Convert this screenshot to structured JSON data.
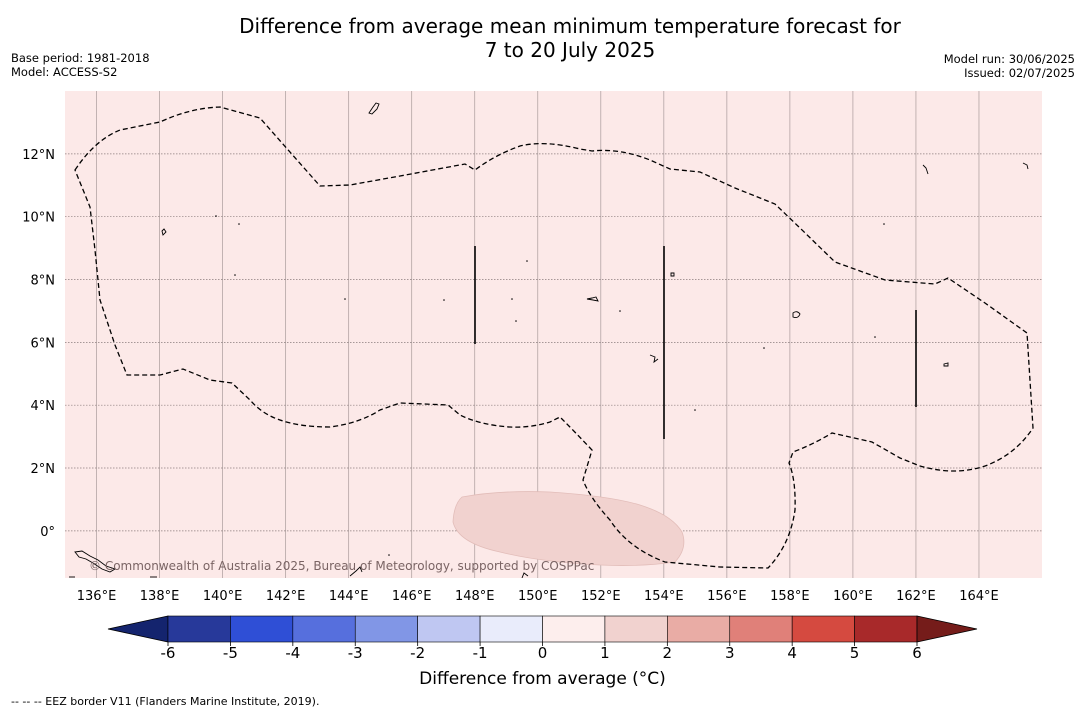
{
  "title": {
    "line1": "Difference from average mean minimum temperature forecast for",
    "line2": "7 to 20 July 2025"
  },
  "meta_left": {
    "base_period": "Base period: 1981-2018",
    "model": "Model: ACCESS-S2"
  },
  "meta_right": {
    "model_run": "Model run: 30/06/2025",
    "issued": "Issued: 02/07/2025"
  },
  "map": {
    "lat_labels": [
      "12°N",
      "10°N",
      "8°N",
      "6°N",
      "4°N",
      "2°N",
      "0°"
    ],
    "lat_values": [
      12,
      10,
      8,
      6,
      4,
      2,
      0
    ],
    "lon_labels": [
      "136°E",
      "138°E",
      "140°E",
      "142°E",
      "144°E",
      "146°E",
      "148°E",
      "150°E",
      "152°E",
      "154°E",
      "156°E",
      "158°E",
      "160°E",
      "162°E",
      "164°E"
    ],
    "lon_values": [
      136,
      138,
      140,
      142,
      144,
      146,
      148,
      150,
      152,
      154,
      156,
      158,
      160,
      162,
      164
    ],
    "lon_range": [
      135,
      166
    ],
    "lat_range": [
      -1.5,
      14
    ],
    "background_color": "#fce9e8",
    "anomaly_patch_color": "#f1d2cf",
    "anomaly_patch_category": "1 to 2",
    "copyright": "© Commonwealth of Australia 2025, Bureau of Meteorology, supported by COSPPac"
  },
  "colorbar": {
    "title": "Difference from average (°C)",
    "tick_labels": [
      "-6",
      "-5",
      "-4",
      "-3",
      "-2",
      "-1",
      "0",
      "1",
      "2",
      "3",
      "4",
      "5",
      "6"
    ],
    "colors": [
      "#27399a",
      "#2f4fd6",
      "#566fdd",
      "#8196e6",
      "#bfc7f2",
      "#e9ecfb",
      "#fdeeed",
      "#f1d2cf",
      "#e9aca5",
      "#e08079",
      "#d54a40",
      "#a8292a"
    ],
    "extend_min_color": "#14246e",
    "extend_max_color": "#751c1a"
  },
  "footnote": "-- -- -- EEZ border V11 (Flanders Marine Institute, 2019)."
}
